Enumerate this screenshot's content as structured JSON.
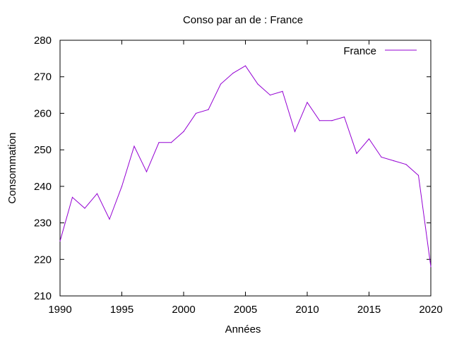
{
  "chart_data": {
    "type": "line",
    "title": "Conso par an de : France",
    "xlabel": "Années",
    "ylabel": "Consommation",
    "xlim": [
      1990,
      2020
    ],
    "ylim": [
      210,
      280
    ],
    "xticks": [
      1990,
      1995,
      2000,
      2005,
      2010,
      2015,
      2020
    ],
    "yticks": [
      210,
      220,
      230,
      240,
      250,
      260,
      270,
      280
    ],
    "grid": false,
    "legend_position": "top-right",
    "series": [
      {
        "name": "France",
        "color": "#9400d3",
        "x": [
          1990,
          1991,
          1992,
          1993,
          1994,
          1995,
          1996,
          1997,
          1998,
          1999,
          2000,
          2001,
          2002,
          2003,
          2004,
          2005,
          2006,
          2007,
          2008,
          2009,
          2010,
          2011,
          2012,
          2013,
          2014,
          2015,
          2016,
          2017,
          2018,
          2019,
          2020
        ],
        "y": [
          225,
          237,
          234,
          238,
          231,
          240,
          251,
          244,
          252,
          252,
          255,
          260,
          261,
          268,
          271,
          273,
          268,
          265,
          266,
          255,
          263,
          258,
          258,
          259,
          249,
          253,
          248,
          247,
          246,
          243,
          218
        ]
      }
    ]
  }
}
